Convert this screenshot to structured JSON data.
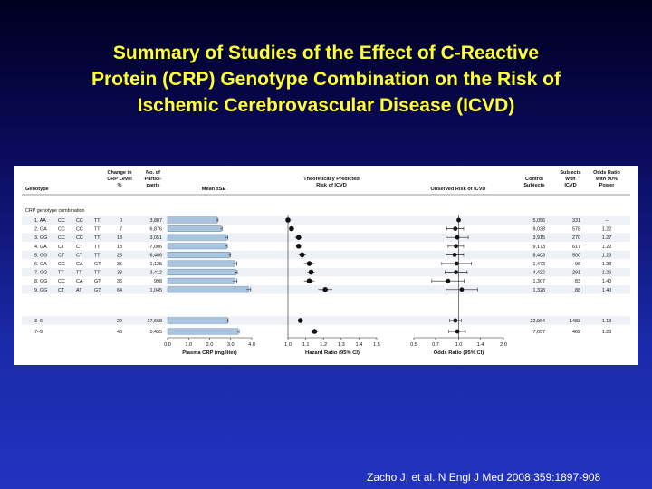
{
  "slide": {
    "title": "Summary of Studies of the Effect of C-Reactive\nProtein (CRP) Genotype Combination on the Risk of\nIschemic Cerebrovascular Disease (ICVD)",
    "citation": "Zacho J, et al. N Engl J Med 2008;359:1897-908"
  },
  "table": {
    "headers": {
      "genotype": "Genotype",
      "change": [
        "Change in",
        "CRP Level",
        "%"
      ],
      "participants": [
        "No. of",
        "Partici-",
        "pants"
      ],
      "mean": "Mean ±SE",
      "predicted": [
        "Theoretically Predicted",
        "Risk of ICVD"
      ],
      "observed": "Observed Risk of ICVD",
      "control": [
        "Control",
        "Subjects"
      ],
      "icvd": [
        "Subjects",
        "with",
        "ICVD"
      ],
      "power": [
        "Odds Ratio",
        "with 90%",
        "Power"
      ]
    },
    "section_label": "CRP genotype combination",
    "rows": [
      {
        "label": "1. AA",
        "g1": "CC",
        "g2": "CC",
        "g3": "TT",
        "change": "0",
        "participants": "3,887",
        "control": "5,056",
        "icvd": "331",
        "power": "–"
      },
      {
        "label": "2. GA",
        "g1": "CC",
        "g2": "CC",
        "g3": "TT",
        "change": "7",
        "participants": "6,876",
        "control": "9,038",
        "icvd": "578",
        "power": "1.22"
      },
      {
        "label": "3. GG",
        "g1": "CC",
        "g2": "CC",
        "g3": "TT",
        "change": "18",
        "participants": "3,051",
        "control": "3,915",
        "icvd": "270",
        "power": "1.27"
      },
      {
        "label": "4. GA",
        "g1": "CT",
        "g2": "CT",
        "g3": "TT",
        "change": "18",
        "participants": "7,006",
        "control": "9,173",
        "icvd": "617",
        "power": "1.22"
      },
      {
        "label": "5. GG",
        "g1": "CT",
        "g2": "CT",
        "g3": "TT",
        "change": "25",
        "participants": "6,486",
        "control": "8,403",
        "icvd": "500",
        "power": "1.23"
      },
      {
        "label": "6. GA",
        "g1": "CC",
        "g2": "CA",
        "g3": "GT",
        "change": "35",
        "participants": "1,125",
        "control": "1,473",
        "icvd": "96",
        "power": "1.38"
      },
      {
        "label": "7. GG",
        "g1": "TT",
        "g2": "TT",
        "g3": "TT",
        "change": "38",
        "participants": "3,412",
        "control": "4,422",
        "icvd": "291",
        "power": "1.26"
      },
      {
        "label": "8. GG",
        "g1": "CC",
        "g2": "CA",
        "g3": "GT",
        "change": "36",
        "participants": "998",
        "control": "1,307",
        "icvd": "83",
        "power": "1.40"
      },
      {
        "label": "9. GG",
        "g1": "CT",
        "g2": "AT",
        "g3": "GT",
        "change": "64",
        "participants": "1,045",
        "control": "1,328",
        "icvd": "88",
        "power": "1.40"
      }
    ],
    "group_rows": [
      {
        "label": "3–6",
        "change": "22",
        "participants": "17,668",
        "control": "22,964",
        "icvd": "1483",
        "power": "1.18"
      },
      {
        "label": "7–9",
        "change": "43",
        "participants": "5,455",
        "control": "7,057",
        "icvd": "462",
        "power": "1.23"
      }
    ]
  },
  "chart_data": [
    {
      "type": "bar",
      "orientation": "horizontal",
      "xlabel": "Plasma CRP (mg/liter)",
      "xlim": [
        0,
        4.0
      ],
      "xticks": [
        "0.0",
        "1.0",
        "2.0",
        "3.0",
        "4.0"
      ],
      "categories": [
        "1. AA CC CC TT",
        "2. GA CC CC TT",
        "3. GG CC CC TT",
        "4. GA CT CT TT",
        "5. GG CT CT TT",
        "6. GA CC CA GT",
        "7. GG TT TT TT",
        "8. GG CC CA GT",
        "9. GG CT AT GT",
        "3–6",
        "7–9"
      ],
      "values": [
        2.35,
        2.55,
        2.8,
        2.8,
        2.95,
        3.2,
        3.25,
        3.2,
        3.85,
        2.85,
        3.35
      ],
      "errors": [
        0.05,
        0.04,
        0.06,
        0.04,
        0.04,
        0.1,
        0.06,
        0.1,
        0.1,
        0.03,
        0.05
      ],
      "bar_color": "#a9c4de"
    },
    {
      "type": "scatter",
      "xlabel": "Hazard Ratio (95% CI)",
      "xlim": [
        1.0,
        1.5
      ],
      "xticks": [
        "1.0",
        "1.1",
        "1.2",
        "1.3",
        "1.4",
        "1.5"
      ],
      "categories": [
        "1. AA CC CC TT",
        "2. GA CC CC TT",
        "3. GG CC CC TT",
        "4. GA CT CT TT",
        "5. GG CT CT TT",
        "6. GA CC CA GT",
        "7. GG TT TT TT",
        "8. GG CC CA GT",
        "9. GG CT AT GT",
        "3–6",
        "7–9"
      ],
      "values": [
        1.0,
        1.02,
        1.06,
        1.06,
        1.08,
        1.12,
        1.13,
        1.12,
        1.21,
        1.07,
        1.15
      ],
      "ci_low": [
        1.0,
        1.01,
        1.04,
        1.05,
        1.06,
        1.09,
        1.11,
        1.09,
        1.17,
        1.06,
        1.13
      ],
      "ci_high": [
        1.0,
        1.03,
        1.08,
        1.07,
        1.1,
        1.15,
        1.15,
        1.15,
        1.25,
        1.08,
        1.17
      ]
    },
    {
      "type": "scatter",
      "xlabel": "Odds Ratio (95% CI)",
      "xlim": [
        0.5,
        2.0
      ],
      "xscale": "log",
      "xticks": [
        "0.5",
        "0.7",
        "1.0",
        "1.4",
        "2.0"
      ],
      "categories": [
        "1. AA CC CC TT",
        "2. GA CC CC TT",
        "3. GG CC CC TT",
        "4. GA CT CT TT",
        "5. GG CT CT TT",
        "6. GA CC CA GT",
        "7. GG TT TT TT",
        "8. GG CC CA GT",
        "9. GG CT AT GT",
        "3–6",
        "7–9"
      ],
      "values": [
        1.0,
        0.95,
        0.98,
        0.96,
        0.94,
        0.97,
        0.96,
        0.85,
        1.05,
        0.95,
        0.98
      ],
      "ci_low": [
        1.0,
        0.83,
        0.82,
        0.85,
        0.82,
        0.77,
        0.81,
        0.66,
        0.82,
        0.87,
        0.86
      ],
      "ci_high": [
        1.0,
        1.08,
        1.16,
        1.08,
        1.08,
        1.22,
        1.14,
        1.09,
        1.34,
        1.04,
        1.11
      ]
    }
  ]
}
